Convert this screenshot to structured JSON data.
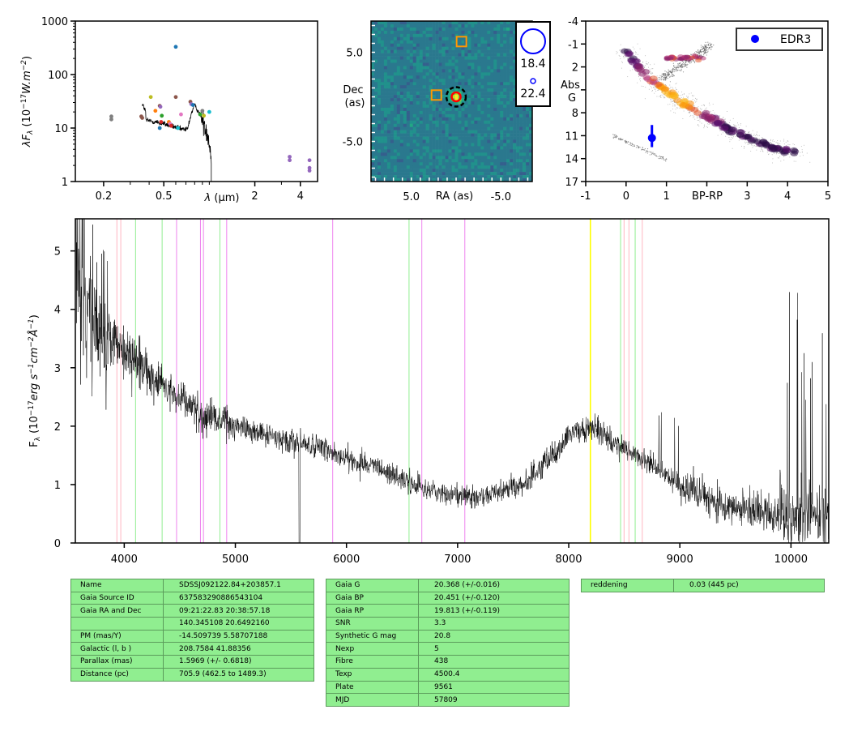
{
  "chart_data": [
    {
      "type": "scatter",
      "panel": "sed",
      "xscale": "log",
      "yscale": "log",
      "xlim": [
        0.13,
        5.2
      ],
      "ylim": [
        1,
        1000
      ],
      "xticks": [
        "0.2",
        "0.5",
        "2",
        "4"
      ],
      "xlabel_prefix": "λ",
      "xlabel_unit": "(μm)",
      "yticks": [
        "1",
        "10",
        "100",
        "1000"
      ],
      "ylabel": "λF_λ (10^-17 W.m^-2)",
      "ylabel_parts": {
        "pre": "λF",
        "sub": "λ",
        "mid": " (10",
        "sup1": "−17",
        "unit": "W.m",
        "sup2": "−2",
        "post": ")"
      },
      "points": [
        {
          "x": 0.225,
          "y": 16.5,
          "color": "#7f7f7f"
        },
        {
          "x": 0.225,
          "y": 14.5,
          "color": "#7f7f7f"
        },
        {
          "x": 0.355,
          "y": 16.5,
          "color": "#8c564b"
        },
        {
          "x": 0.36,
          "y": 15.5,
          "color": "#8c564b"
        },
        {
          "x": 0.41,
          "y": 38,
          "color": "#bcbd22"
        },
        {
          "x": 0.44,
          "y": 21,
          "color": "#ff7f0e"
        },
        {
          "x": 0.47,
          "y": 26,
          "color": "#8c564b"
        },
        {
          "x": 0.475,
          "y": 25,
          "color": "#9467bd"
        },
        {
          "x": 0.48,
          "y": 13,
          "color": "#d62728"
        },
        {
          "x": 0.485,
          "y": 17,
          "color": "#2ca02c"
        },
        {
          "x": 0.47,
          "y": 10,
          "color": "#1f77b4"
        },
        {
          "x": 0.54,
          "y": 13,
          "color": "#ff7f0e"
        },
        {
          "x": 0.55,
          "y": 12,
          "color": "#e377c2"
        },
        {
          "x": 0.56,
          "y": 11,
          "color": "#d62728"
        },
        {
          "x": 0.6,
          "y": 38,
          "color": "#8c564b"
        },
        {
          "x": 0.6,
          "y": 330,
          "color": "#1f77b4"
        },
        {
          "x": 0.62,
          "y": 10,
          "color": "#17becf"
        },
        {
          "x": 0.65,
          "y": 18,
          "color": "#e377c2"
        },
        {
          "x": 0.75,
          "y": 31,
          "color": "#8c564b"
        },
        {
          "x": 0.76,
          "y": 28,
          "color": "#9467bd"
        },
        {
          "x": 0.78,
          "y": 27,
          "color": "#1f77b4"
        },
        {
          "x": 0.87,
          "y": 18,
          "color": "#2ca02c"
        },
        {
          "x": 0.9,
          "y": 21,
          "color": "#7f7f7f"
        },
        {
          "x": 0.92,
          "y": 17,
          "color": "#bcbd22"
        },
        {
          "x": 1.0,
          "y": 20,
          "color": "#17becf"
        },
        {
          "x": 3.4,
          "y": 2.9,
          "color": "#9467bd"
        },
        {
          "x": 3.4,
          "y": 2.5,
          "color": "#9467bd"
        },
        {
          "x": 4.6,
          "y": 2.5,
          "color": "#9467bd"
        },
        {
          "x": 4.6,
          "y": 1.8,
          "color": "#9467bd"
        },
        {
          "x": 4.6,
          "y": 1.6,
          "color": "#9467bd"
        }
      ],
      "spectrum_line_x_range_um": [
        0.36,
        1.03
      ]
    },
    {
      "type": "heatmap",
      "panel": "sky-image",
      "xlim": [
        9.5,
        -8.5
      ],
      "ylim": [
        -9.5,
        8.5
      ],
      "xticks": [
        "5.0",
        "-5.0"
      ],
      "xtick_values": [
        5,
        -5
      ],
      "yticks": [
        "5.0",
        "-5.0"
      ],
      "ytick_values": [
        5,
        -5
      ],
      "xlabel": "RA (as)",
      "ylabel_lines": [
        "Dec",
        "(as)"
      ],
      "target": {
        "ra": 0,
        "dec": 0
      },
      "neighbours": [
        {
          "ra": -0.6,
          "dec": 6.2
        },
        {
          "ra": 2.2,
          "dec": 0.2
        }
      ],
      "legend_mags": [
        "18.4",
        "22.4"
      ]
    },
    {
      "type": "scatter",
      "panel": "hr-diagram",
      "xlim": [
        -1,
        5
      ],
      "ylim": [
        17,
        -4
      ],
      "xticks": [
        "-1",
        "0",
        "1",
        "2",
        "3",
        "4",
        "5"
      ],
      "yticks": [
        "-4",
        "-1",
        "2",
        "5",
        "8",
        "11",
        "14",
        "17"
      ],
      "xlabel": "BP-RP",
      "ylabel_lines": [
        "Abs",
        "G"
      ],
      "legend": "EDR3",
      "star": {
        "bp_rp": 0.64,
        "abs_g": 11.3,
        "abs_g_err": [
          9.6,
          12.5
        ]
      }
    },
    {
      "type": "line",
      "panel": "spectrum",
      "xlim": [
        3560,
        10340
      ],
      "ylim": [
        0,
        5.55
      ],
      "xticks": [
        "4000",
        "5000",
        "6000",
        "7000",
        "8000",
        "9000",
        "10000"
      ],
      "yticks": [
        "0",
        "1",
        "2",
        "3",
        "4",
        "5"
      ],
      "ylabel": "F_λ (10^-17 erg s^-1 cm^-2 Å^-1)",
      "ylabel_parts": {
        "pre": "F",
        "sub": "λ",
        "mid": " (10",
        "sup1": "−17",
        "unit1": "erg s",
        "sup2": "−1",
        "unit2": "cm",
        "sup3": "−2",
        "unit3": "Å",
        "sup4": "−1",
        "post": ")"
      },
      "continuum_anchors": [
        [
          3560,
          4.6
        ],
        [
          3700,
          3.9
        ],
        [
          4000,
          3.3
        ],
        [
          4300,
          2.8
        ],
        [
          4700,
          2.2
        ],
        [
          5200,
          1.9
        ],
        [
          5800,
          1.6
        ],
        [
          6300,
          1.25
        ],
        [
          6800,
          0.85
        ],
        [
          7200,
          0.78
        ],
        [
          7600,
          1.0
        ],
        [
          7900,
          1.6
        ],
        [
          8050,
          1.95
        ],
        [
          8250,
          1.95
        ],
        [
          8400,
          1.7
        ],
        [
          8700,
          1.4
        ],
        [
          9000,
          1.0
        ],
        [
          9400,
          0.65
        ],
        [
          9800,
          0.5
        ],
        [
          10100,
          0.45
        ],
        [
          10340,
          0.45
        ]
      ],
      "vlines": [
        {
          "x": 3934,
          "color": "#ffb6c1"
        },
        {
          "x": 3969,
          "color": "#ffb6c1"
        },
        {
          "x": 4102,
          "color": "#90ee90"
        },
        {
          "x": 4341,
          "color": "#90ee90"
        },
        {
          "x": 4471,
          "color": "#ee82ee"
        },
        {
          "x": 4686,
          "color": "#ee82ee"
        },
        {
          "x": 4713,
          "color": "#ee82ee"
        },
        {
          "x": 4861,
          "color": "#90ee90"
        },
        {
          "x": 4922,
          "color": "#ee82ee"
        },
        {
          "x": 5876,
          "color": "#ee82ee"
        },
        {
          "x": 6563,
          "color": "#90ee90"
        },
        {
          "x": 6678,
          "color": "#ee82ee"
        },
        {
          "x": 7065,
          "color": "#ee82ee"
        },
        {
          "x": 8195,
          "color": "#ffff00"
        },
        {
          "x": 8467,
          "color": "#90ee90"
        },
        {
          "x": 8498,
          "color": "#ffb6c1"
        },
        {
          "x": 8542,
          "color": "#ffb6c1"
        },
        {
          "x": 8598,
          "color": "#90ee90"
        },
        {
          "x": 8662,
          "color": "#ffb6c1"
        }
      ]
    }
  ],
  "tables": {
    "star": [
      {
        "key": "Name",
        "value": "SDSSJ092122.84+203857.1"
      },
      {
        "key": "Gaia Source ID",
        "value": "637583290886543104"
      },
      {
        "key": "Gaia RA and Dec",
        "value": "09:21:22.83    20:38:57.18"
      },
      {
        "key": "",
        "value": "140.345108    20.6492160"
      },
      {
        "key": "PM (mas/Y)",
        "value": "-14.509739    5.58707188"
      },
      {
        "key": "Galactic (l, b )",
        "value": "208.7584    41.88356"
      },
      {
        "key": "Parallax (mas)",
        "value": "1.5969 (+/- 0.6818)"
      },
      {
        "key": "Distance (pc)",
        "value": "705.9 (462.5 to 1489.3)"
      }
    ],
    "gaia": [
      {
        "key": "Gaia G",
        "value": "20.368 (+/-0.016)"
      },
      {
        "key": "Gaia BP",
        "value": "20.451 (+/-0.120)"
      },
      {
        "key": "Gaia RP",
        "value": "19.813 (+/-0.119)"
      },
      {
        "key": "SNR",
        "value": "3.3"
      },
      {
        "key": "Synthetic G mag",
        "value": "20.8"
      },
      {
        "key": "Nexp",
        "value": "5"
      },
      {
        "key": "Fibre",
        "value": "438"
      },
      {
        "key": "Texp",
        "value": "4500.4"
      },
      {
        "key": "Plate",
        "value": "9561"
      },
      {
        "key": "MJD",
        "value": "57809"
      }
    ],
    "extra": [
      {
        "key": "reddening",
        "value": "0.03 (445 pc)"
      }
    ]
  }
}
